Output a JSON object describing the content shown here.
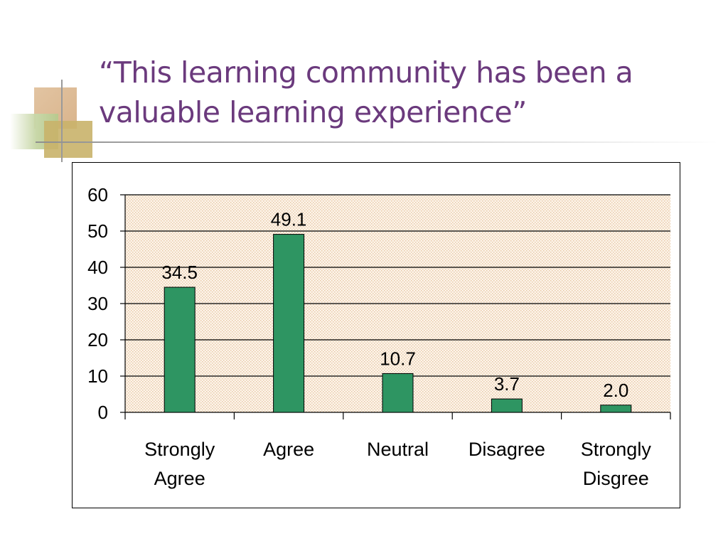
{
  "title": "“This learning community has been a\nvaluable learning experience”",
  "chart_data": {
    "type": "bar",
    "categories": [
      "Strongly Agree",
      "Agree",
      "Neutral",
      "Disagree",
      "Strongly Disgree"
    ],
    "category_lines": [
      [
        "Strongly",
        "Agree"
      ],
      [
        "Agree"
      ],
      [
        "Neutral"
      ],
      [
        "Disagree"
      ],
      [
        "Strongly",
        "Disgree"
      ]
    ],
    "values": [
      34.5,
      49.1,
      10.7,
      3.7,
      2.0
    ],
    "value_labels": [
      "34.5",
      "49.1",
      "10.7",
      "3.7",
      "2.0"
    ],
    "yticks": [
      0,
      10,
      20,
      30,
      40,
      50,
      60
    ],
    "ylim": [
      0,
      60
    ],
    "grid": true,
    "xlabel": "",
    "ylabel": "",
    "bar_color": "#2e9562",
    "plot_background": "#fbeedd"
  }
}
